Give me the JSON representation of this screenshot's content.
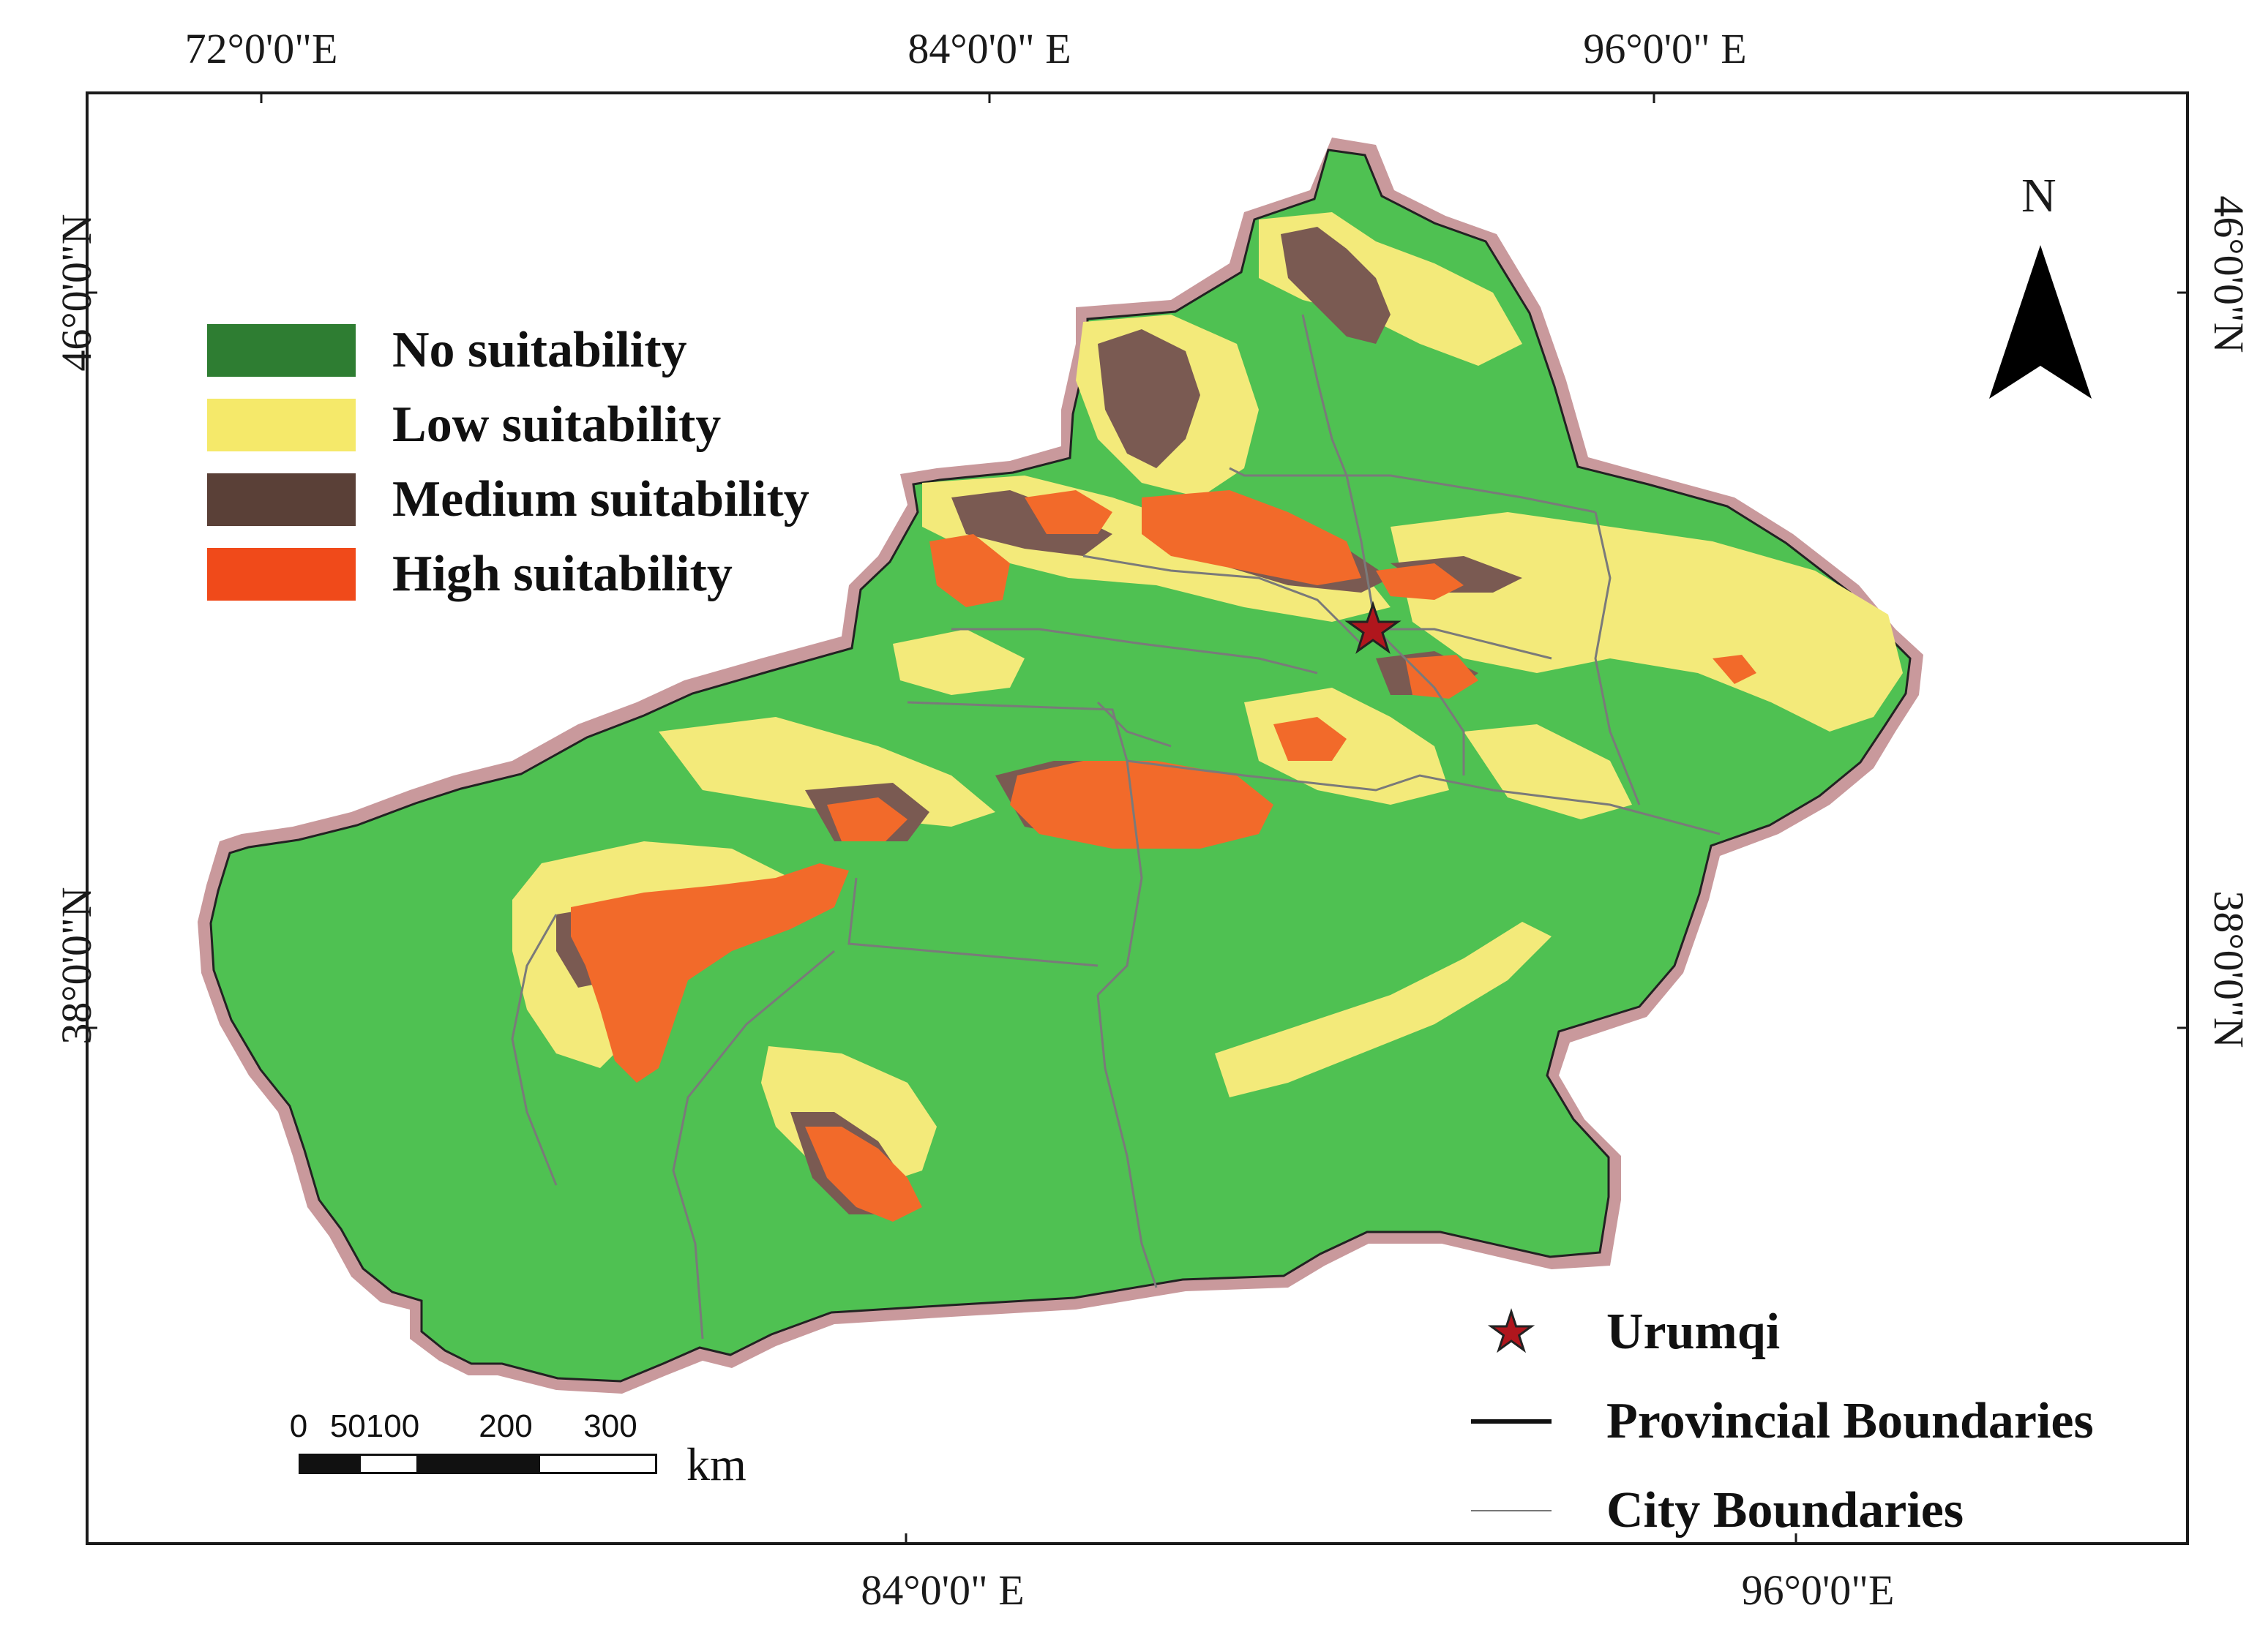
{
  "axes": {
    "top_labels": [
      "72°0'0\"E",
      "84°0'0\" E",
      "96°0'0\" E"
    ],
    "bottom_labels": [
      "84°0'0\" E",
      "96°0'0\"E"
    ],
    "left_labels": [
      "46°0'0\"N",
      "38°0'0\"N"
    ],
    "right_labels": [
      "46°0'0\"N",
      "38°0'0\"N"
    ]
  },
  "legend": {
    "items": [
      {
        "label": "No suitability",
        "color": "#2e7d32"
      },
      {
        "label": "Low suitability",
        "color": "#f5e96a"
      },
      {
        "label": "Medium suitability",
        "color": "#5a4037"
      },
      {
        "label": "High suitability",
        "color": "#f04a1a"
      }
    ]
  },
  "symbols": {
    "urumqi": "Urumqi",
    "provincial": "Provincial Boundaries",
    "city": "City Boundaries"
  },
  "north_arrow": {
    "label": "N",
    "icon": "north-arrow-icon"
  },
  "scale_bar": {
    "ticks": [
      "0",
      "50100",
      "200",
      "300"
    ],
    "unit": "km"
  },
  "map_colors": {
    "base_green": "#4fc152",
    "low": "#f3ea7a",
    "medium": "#7a5a52",
    "high": "#f26a2a",
    "buffer": "#c9999c",
    "star": "#b0161d"
  }
}
